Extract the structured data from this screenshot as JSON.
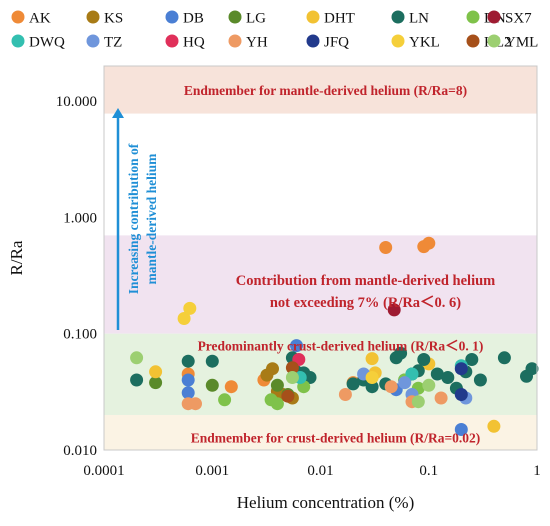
{
  "chart_data": {
    "type": "scatter",
    "title": "",
    "xlabel": "Helium concentration (%)",
    "ylabel": "R/Ra",
    "xscale": "log",
    "yscale": "log",
    "xlim": [
      0.0001,
      1
    ],
    "ylim": [
      0.01,
      20
    ],
    "x_ticks": [
      "0.0001",
      "0.001",
      "0.01",
      "0.1",
      "1"
    ],
    "y_ticks": [
      "0.010",
      "0.100",
      "1.000",
      "10.000"
    ],
    "legend_position": "top",
    "bands": [
      {
        "name": "mantle",
        "y_range": [
          7.8,
          20
        ],
        "color": "#f7e3da",
        "label": "Endmember for mantle-derived helium (R/Ra=8)"
      },
      {
        "name": "contribution",
        "y_range": [
          0.1,
          0.7
        ],
        "color": "#f1e3f0",
        "label": "Contribution from mantle-derived helium not exceeding 7% (R/Ra＜0. 6)",
        "label_lines": [
          "Contribution from mantle-derived helium",
          "not exceeding 7% (R/Ra＜0. 6)"
        ]
      },
      {
        "name": "crust-dominant",
        "y_range": [
          0.02,
          0.1
        ],
        "color": "#e5f2df",
        "label": "Predominantly crust-derived helium (R/Ra＜0. 1)"
      },
      {
        "name": "crust",
        "y_range": [
          0.01,
          0.02
        ],
        "color": "#fbf3e4",
        "label": "Endmember for crust-derived helium (R/Ra=0.02)"
      }
    ],
    "arrow_label": [
      "Increasing contribution of",
      "mantle-derived helium"
    ],
    "arrow_color": "#1f8fd6",
    "series": [
      {
        "name": "AK",
        "color": "#ef8a37",
        "points": [
          [
            0.04,
            0.55
          ],
          [
            0.09,
            0.56
          ],
          [
            0.1,
            0.6
          ],
          [
            0.0006,
            0.045
          ],
          [
            0.0015,
            0.035
          ],
          [
            0.003,
            0.04
          ],
          [
            0.02,
            0.038
          ]
        ]
      },
      {
        "name": "KS",
        "color": "#a87b16",
        "points": [
          [
            0.0032,
            0.044
          ],
          [
            0.0036,
            0.05
          ],
          [
            0.004,
            0.032
          ],
          [
            0.0045,
            0.03
          ],
          [
            0.0055,
            0.028
          ]
        ]
      },
      {
        "name": "DB",
        "color": "#4a7fd4",
        "points": [
          [
            0.0006,
            0.04
          ],
          [
            0.0006,
            0.031
          ],
          [
            0.006,
            0.079
          ],
          [
            0.05,
            0.033
          ],
          [
            0.2,
            0.015
          ]
        ]
      },
      {
        "name": "LG",
        "color": "#5a8a2a",
        "points": [
          [
            0.0003,
            0.038
          ],
          [
            0.001,
            0.036
          ],
          [
            0.004,
            0.036
          ],
          [
            0.005,
            0.03
          ],
          [
            0.0058,
            0.047
          ]
        ]
      },
      {
        "name": "DHT",
        "color": "#f2c233",
        "points": [
          [
            0.0003,
            0.047
          ],
          [
            0.03,
            0.061
          ],
          [
            0.032,
            0.046
          ],
          [
            0.1,
            0.055
          ],
          [
            0.4,
            0.016
          ]
        ]
      },
      {
        "name": "LN",
        "color": "#1c6e5f",
        "points": [
          [
            0.0002,
            0.04
          ],
          [
            0.0006,
            0.058
          ],
          [
            0.001,
            0.058
          ],
          [
            0.0055,
            0.062
          ],
          [
            0.006,
            0.047
          ],
          [
            0.007,
            0.046
          ],
          [
            0.008,
            0.042
          ],
          [
            0.02,
            0.037
          ],
          [
            0.025,
            0.04
          ],
          [
            0.03,
            0.035
          ],
          [
            0.04,
            0.037
          ],
          [
            0.05,
            0.062
          ],
          [
            0.055,
            0.068
          ],
          [
            0.06,
            0.04
          ],
          [
            0.07,
            0.045
          ],
          [
            0.08,
            0.048
          ],
          [
            0.09,
            0.06
          ],
          [
            0.12,
            0.045
          ],
          [
            0.15,
            0.042
          ],
          [
            0.18,
            0.034
          ],
          [
            0.22,
            0.047
          ],
          [
            0.25,
            0.06
          ],
          [
            0.3,
            0.04
          ],
          [
            0.5,
            0.062
          ],
          [
            0.8,
            0.043
          ],
          [
            0.9,
            0.05
          ]
        ]
      },
      {
        "name": "DN",
        "color": "#7fc24a",
        "points": [
          [
            0.0013,
            0.027
          ],
          [
            0.0035,
            0.027
          ],
          [
            0.004,
            0.025
          ],
          [
            0.007,
            0.035
          ],
          [
            0.06,
            0.04
          ],
          [
            0.08,
            0.034
          ]
        ]
      },
      {
        "name": "SX7",
        "color": "#9e1b32",
        "points": [
          [
            0.048,
            0.16
          ]
        ]
      },
      {
        "name": "DWQ",
        "color": "#33bfb0",
        "points": [
          [
            0.0065,
            0.042
          ],
          [
            0.07,
            0.045
          ],
          [
            0.2,
            0.053
          ]
        ]
      },
      {
        "name": "TZ",
        "color": "#6f96dc",
        "points": [
          [
            0.025,
            0.045
          ],
          [
            0.06,
            0.038
          ],
          [
            0.07,
            0.03
          ],
          [
            0.22,
            0.028
          ]
        ]
      },
      {
        "name": "HQ",
        "color": "#e0305a",
        "points": [
          [
            0.0063,
            0.06
          ]
        ]
      },
      {
        "name": "YH",
        "color": "#ee9a63",
        "points": [
          [
            0.0006,
            0.025
          ],
          [
            0.0007,
            0.025
          ],
          [
            0.017,
            0.03
          ],
          [
            0.045,
            0.035
          ],
          [
            0.07,
            0.026
          ],
          [
            0.13,
            0.028
          ]
        ]
      },
      {
        "name": "JFQ",
        "color": "#223a8c",
        "points": [
          [
            0.2,
            0.05
          ],
          [
            0.2,
            0.03
          ]
        ]
      },
      {
        "name": "YKL",
        "color": "#f5cf3a",
        "points": [
          [
            0.00055,
            0.135
          ],
          [
            0.00062,
            0.165
          ],
          [
            0.03,
            0.042
          ]
        ]
      },
      {
        "name": "KL2",
        "color": "#a6501a",
        "points": [
          [
            0.005,
            0.029
          ],
          [
            0.0055,
            0.051
          ]
        ]
      },
      {
        "name": "YML",
        "color": "#9ccf71",
        "points": [
          [
            0.0002,
            0.062
          ],
          [
            0.0055,
            0.042
          ],
          [
            0.08,
            0.026
          ],
          [
            0.1,
            0.036
          ]
        ]
      }
    ]
  }
}
